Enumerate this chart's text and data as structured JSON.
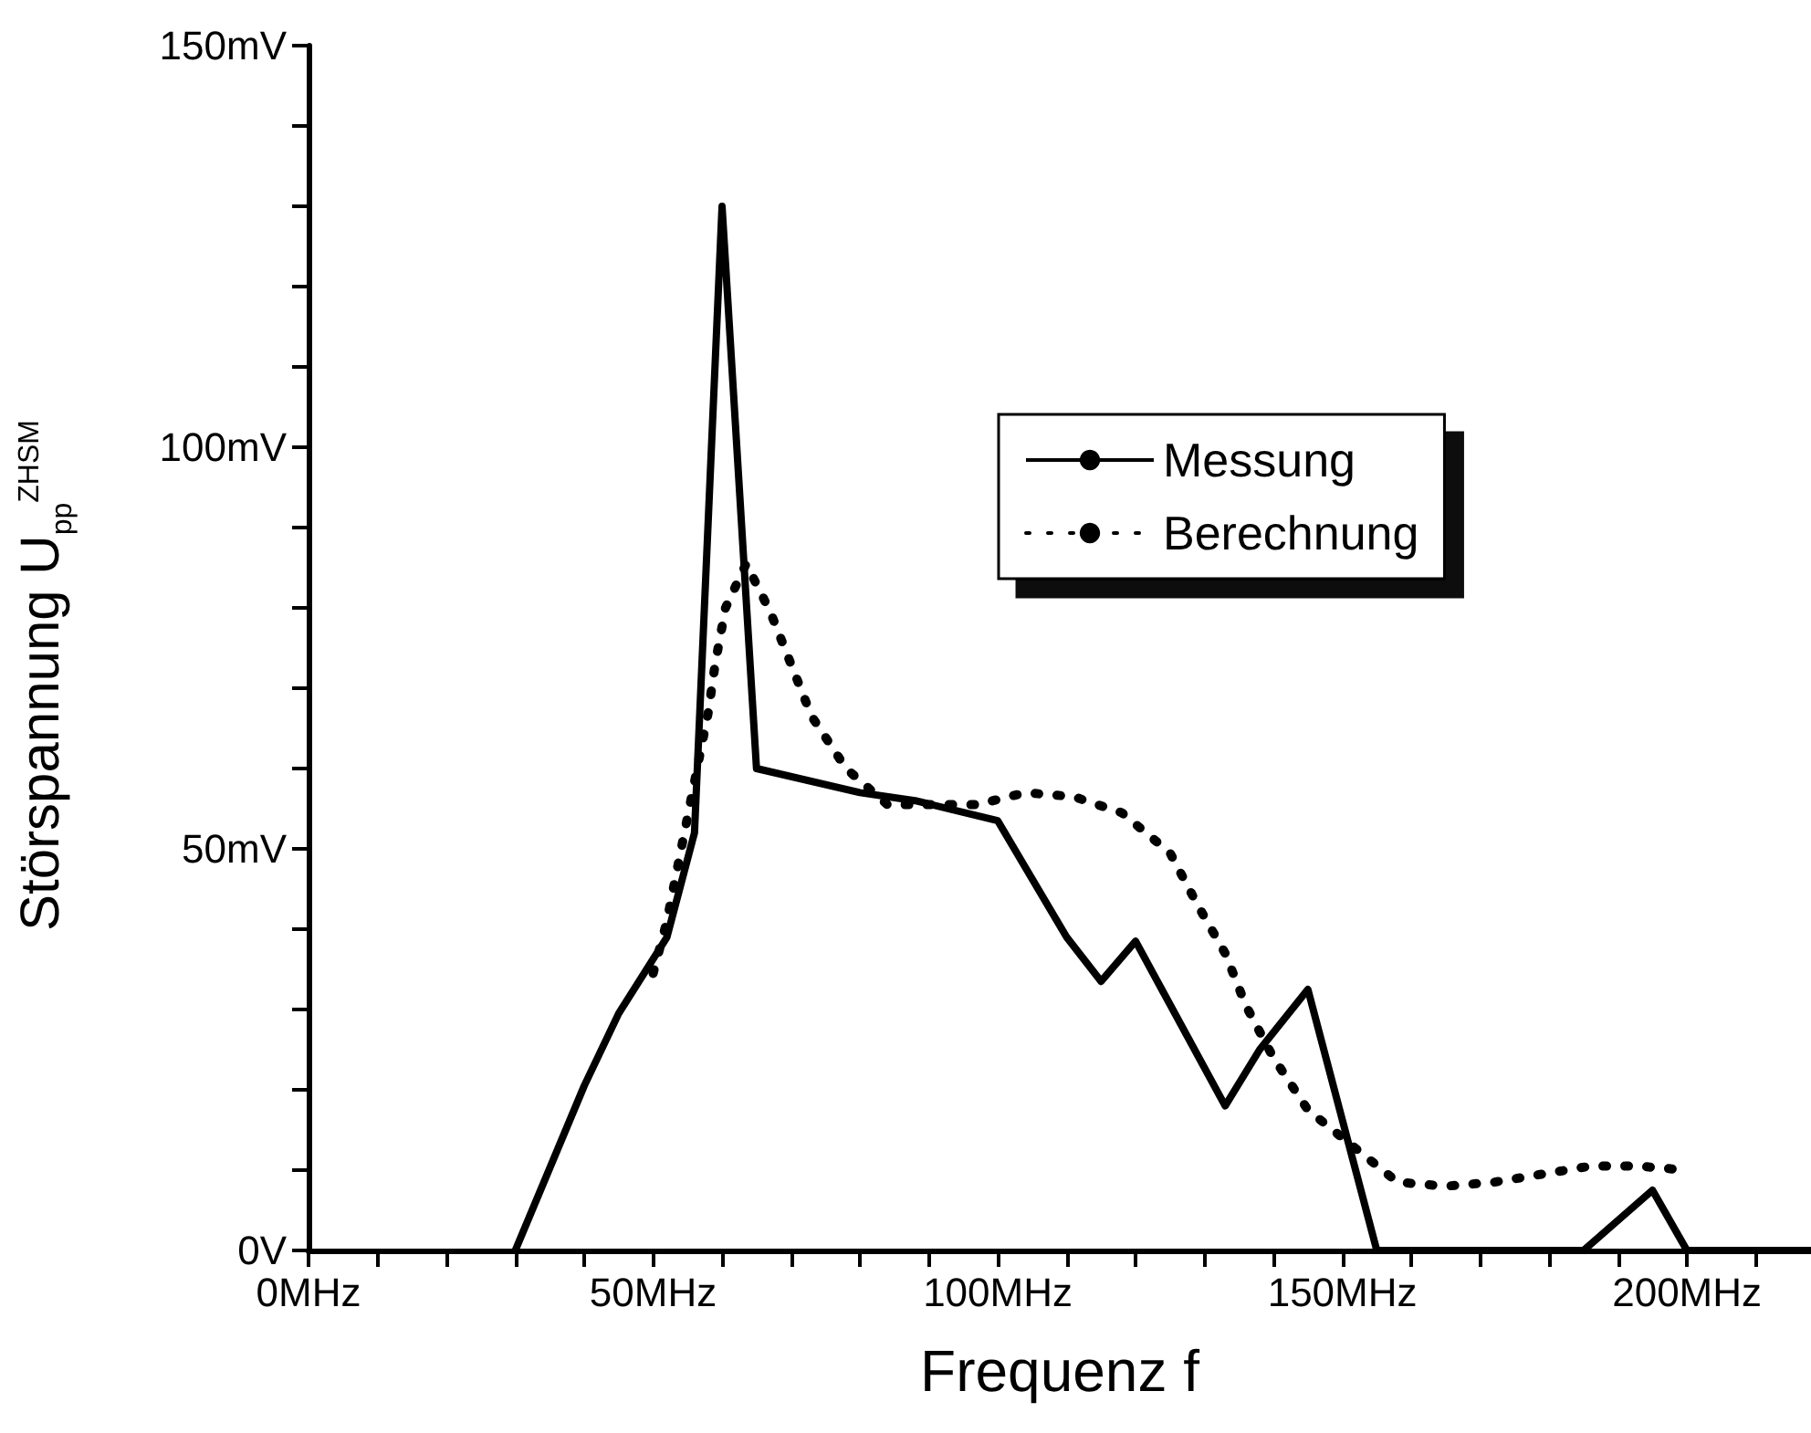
{
  "chart_data": {
    "type": "line",
    "xlabel": "Frequenz f",
    "ylabel": "Störspannung U$_{pp}$$^{ZHSM}$",
    "xlim": [
      0,
      218
    ],
    "ylim": [
      0,
      150
    ],
    "xticks": [
      {
        "value": 0,
        "label": "0MHz"
      },
      {
        "value": 10,
        "label": null
      },
      {
        "value": 20,
        "label": null
      },
      {
        "value": 30,
        "label": null
      },
      {
        "value": 40,
        "label": null
      },
      {
        "value": 50,
        "label": "50MHz"
      },
      {
        "value": 60,
        "label": null
      },
      {
        "value": 70,
        "label": null
      },
      {
        "value": 80,
        "label": null
      },
      {
        "value": 90,
        "label": null
      },
      {
        "value": 100,
        "label": "100MHz"
      },
      {
        "value": 110,
        "label": null
      },
      {
        "value": 120,
        "label": null
      },
      {
        "value": 130,
        "label": null
      },
      {
        "value": 140,
        "label": null
      },
      {
        "value": 150,
        "label": "150MHz"
      },
      {
        "value": 160,
        "label": null
      },
      {
        "value": 170,
        "label": null
      },
      {
        "value": 180,
        "label": null
      },
      {
        "value": 190,
        "label": null
      },
      {
        "value": 200,
        "label": "200MHz"
      },
      {
        "value": 210,
        "label": null
      }
    ],
    "yticks": [
      {
        "value": 0,
        "label": "0V"
      },
      {
        "value": 10,
        "label": null
      },
      {
        "value": 20,
        "label": null
      },
      {
        "value": 30,
        "label": null
      },
      {
        "value": 40,
        "label": null
      },
      {
        "value": 50,
        "label": "50mV"
      },
      {
        "value": 60,
        "label": null
      },
      {
        "value": 70,
        "label": null
      },
      {
        "value": 80,
        "label": null
      },
      {
        "value": 90,
        "label": null
      },
      {
        "value": 100,
        "label": "100mV"
      },
      {
        "value": 110,
        "label": null
      },
      {
        "value": 120,
        "label": null
      },
      {
        "value": 130,
        "label": null
      },
      {
        "value": 140,
        "label": null
      },
      {
        "value": 150,
        "label": "150mV"
      }
    ],
    "grid": false,
    "legend": "top right",
    "marker": "none",
    "series": [
      {
        "name": "Messung",
        "color": "#000000",
        "line_style": "solid",
        "x": [
          30,
          40,
          45,
          52,
          56,
          60,
          65,
          80,
          88,
          100,
          110,
          115,
          120,
          133,
          138,
          145,
          155,
          185,
          195,
          200,
          218
        ],
        "values": [
          0,
          20.5,
          29.5,
          39,
          52,
          130,
          60,
          57,
          56,
          53.5,
          39,
          33.5,
          38.5,
          18,
          25,
          32.5,
          0,
          0,
          7.5,
          0,
          0
        ]
      },
      {
        "name": "Berechnung",
        "color": "#000000",
        "line_style": "dotted",
        "x": [
          50,
          52,
          53.5,
          55,
          56.5,
          58,
          59,
          60.5,
          63.5,
          67,
          70,
          73,
          78,
          84,
          97,
          104,
          111,
          118,
          125,
          129,
          133,
          136,
          140,
          145,
          158,
          165,
          172,
          179,
          186,
          193,
          200
        ],
        "values": [
          34.5,
          41,
          47.5,
          54,
          60.5,
          67,
          73,
          80,
          85.5,
          79.5,
          73,
          66.5,
          60,
          55.5,
          55.5,
          57,
          56.5,
          54.5,
          49.5,
          43,
          37,
          30.5,
          24,
          17.5,
          8.5,
          8,
          8.5,
          9.5,
          10.5,
          10.5,
          10
        ]
      }
    ]
  }
}
